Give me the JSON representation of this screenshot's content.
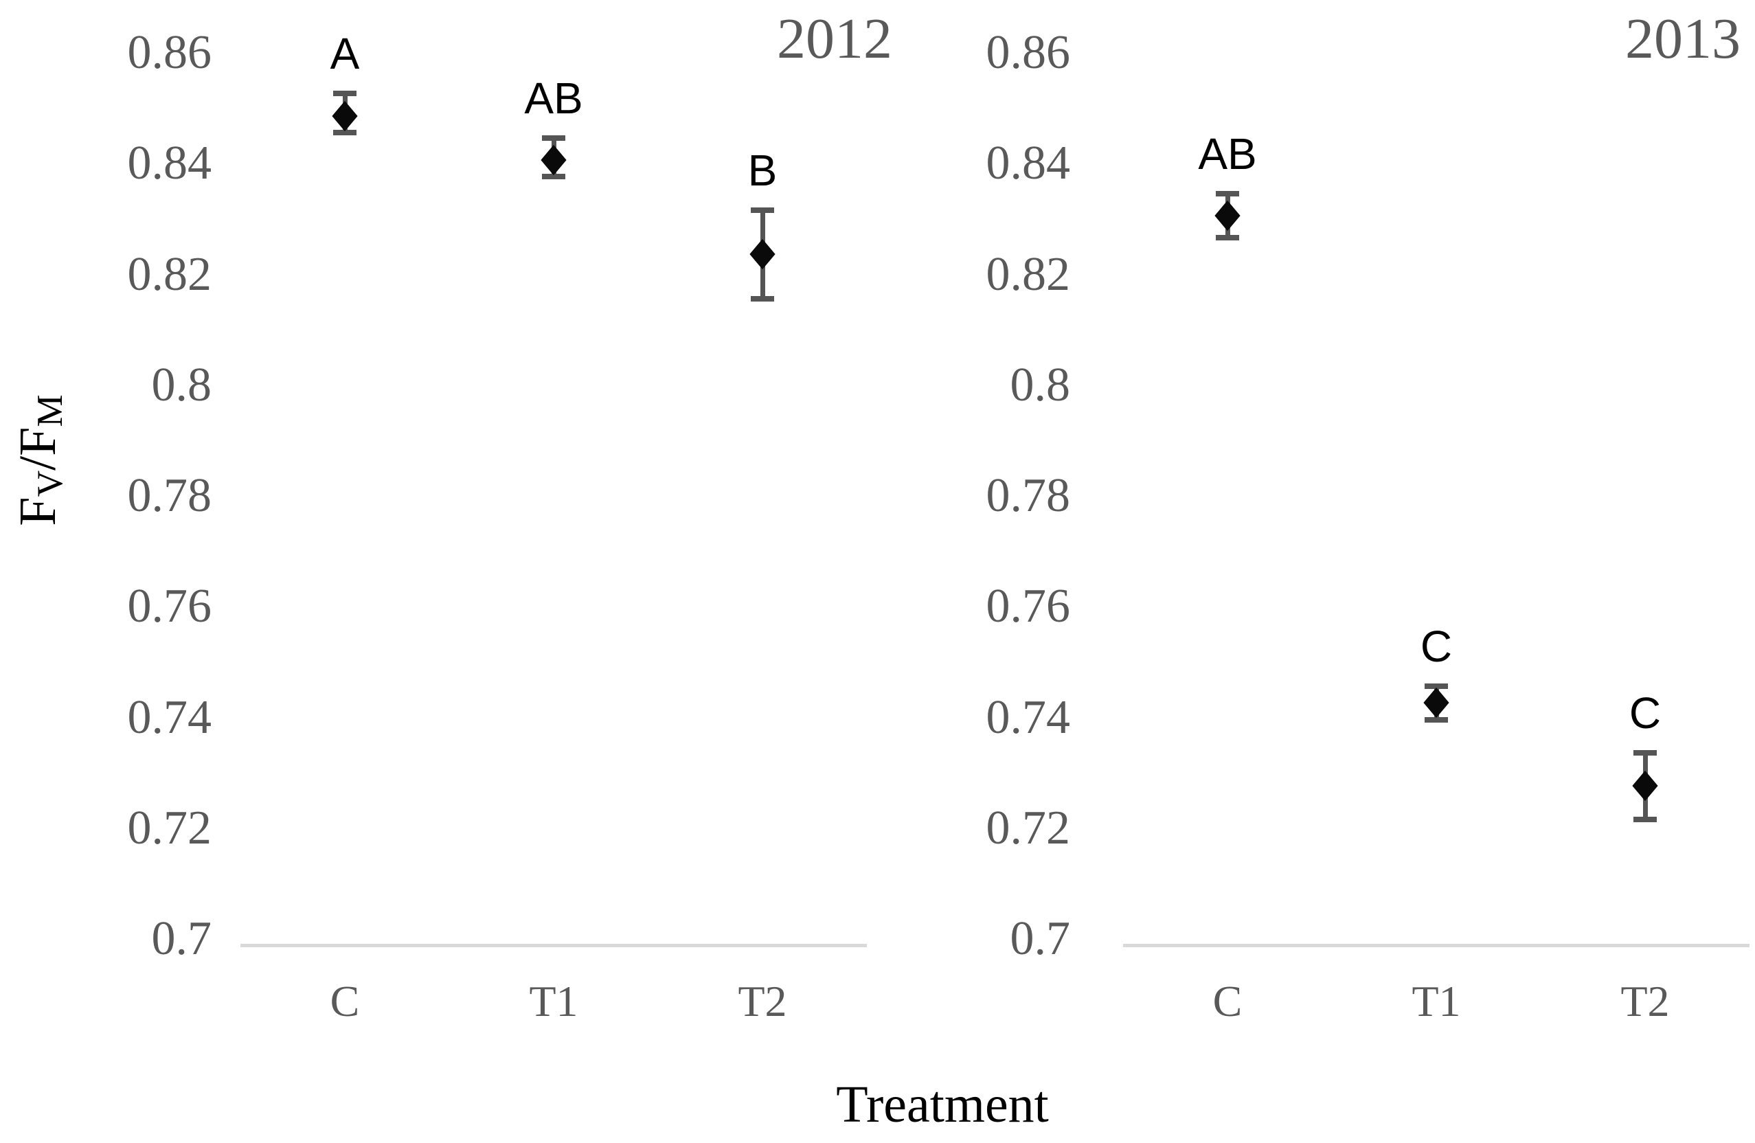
{
  "figure": {
    "x_axis_title": "Treatment",
    "y_axis_title_parts": {
      "base1": "F",
      "sub1": "V",
      "slash": "/",
      "base2": "F",
      "sub2": "M"
    }
  },
  "colors": {
    "background": "#ffffff",
    "tick_text": "#595959",
    "year_text": "#595959",
    "category_text": "#595959",
    "axis_line": "#d9d9d9",
    "error_bar": "#555555",
    "marker": "#0a0a0a",
    "letter_text": "#000000",
    "title_text": "#000000"
  },
  "chart_data": {
    "type": "scatter",
    "marker": "diamond",
    "error_bars": true,
    "grid": false,
    "legend": "none",
    "xlabel": "Treatment",
    "ylabel": "FV/FM",
    "categories": [
      "C",
      "T1",
      "T2"
    ],
    "y_axis": {
      "min": 0.7,
      "max": 0.86,
      "step": 0.02,
      "tick_labels": [
        "0.86",
        "0.84",
        "0.82",
        "0.8",
        "0.78",
        "0.76",
        "0.74",
        "0.72",
        "0.7"
      ]
    },
    "panels": [
      {
        "title": "2012",
        "points": [
          {
            "category": "C",
            "value": 0.849,
            "error_low": 0.846,
            "error_high": 0.853,
            "letter": "A"
          },
          {
            "category": "T1",
            "value": 0.841,
            "error_low": 0.838,
            "error_high": 0.845,
            "letter": "AB"
          },
          {
            "category": "T2",
            "value": 0.824,
            "error_low": 0.816,
            "error_high": 0.832,
            "letter": "B"
          }
        ]
      },
      {
        "title": "2013",
        "points": [
          {
            "category": "C",
            "value": 0.831,
            "error_low": 0.827,
            "error_high": 0.835,
            "letter": "AB"
          },
          {
            "category": "T1",
            "value": 0.743,
            "error_low": 0.74,
            "error_high": 0.746,
            "letter": "C"
          },
          {
            "category": "T2",
            "value": 0.728,
            "error_low": 0.722,
            "error_high": 0.734,
            "letter": "C"
          }
        ]
      }
    ]
  }
}
